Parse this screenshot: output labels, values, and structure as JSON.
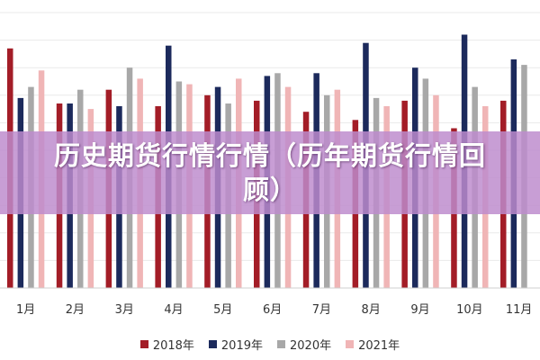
{
  "chart_data": {
    "type": "bar",
    "categories": [
      "1月",
      "2月",
      "3月",
      "4月",
      "5月",
      "6月",
      "7月",
      "8月",
      "9月",
      "10月",
      "11月"
    ],
    "ylim": [
      0,
      100
    ],
    "grid": true,
    "legend_position": "bottom",
    "series": [
      {
        "name": "2018年",
        "color": "#a31d27",
        "values": [
          87,
          67,
          72,
          66,
          70,
          68,
          64,
          61,
          68,
          58,
          68
        ]
      },
      {
        "name": "2019年",
        "color": "#1c2a5c",
        "values": [
          69,
          67,
          66,
          88,
          73,
          77,
          78,
          89,
          80,
          92,
          83
        ]
      },
      {
        "name": "2020年",
        "color": "#a8a8a8",
        "values": [
          73,
          72,
          80,
          75,
          67,
          78,
          70,
          69,
          76,
          73,
          81
        ]
      },
      {
        "name": "2021年",
        "color": "#f0b5b6",
        "values": [
          79,
          65,
          76,
          74,
          76,
          73,
          72,
          66,
          70,
          66,
          null
        ]
      }
    ]
  },
  "overlay": {
    "title": "历史期货行情行情（历年期货行情回顾）"
  }
}
